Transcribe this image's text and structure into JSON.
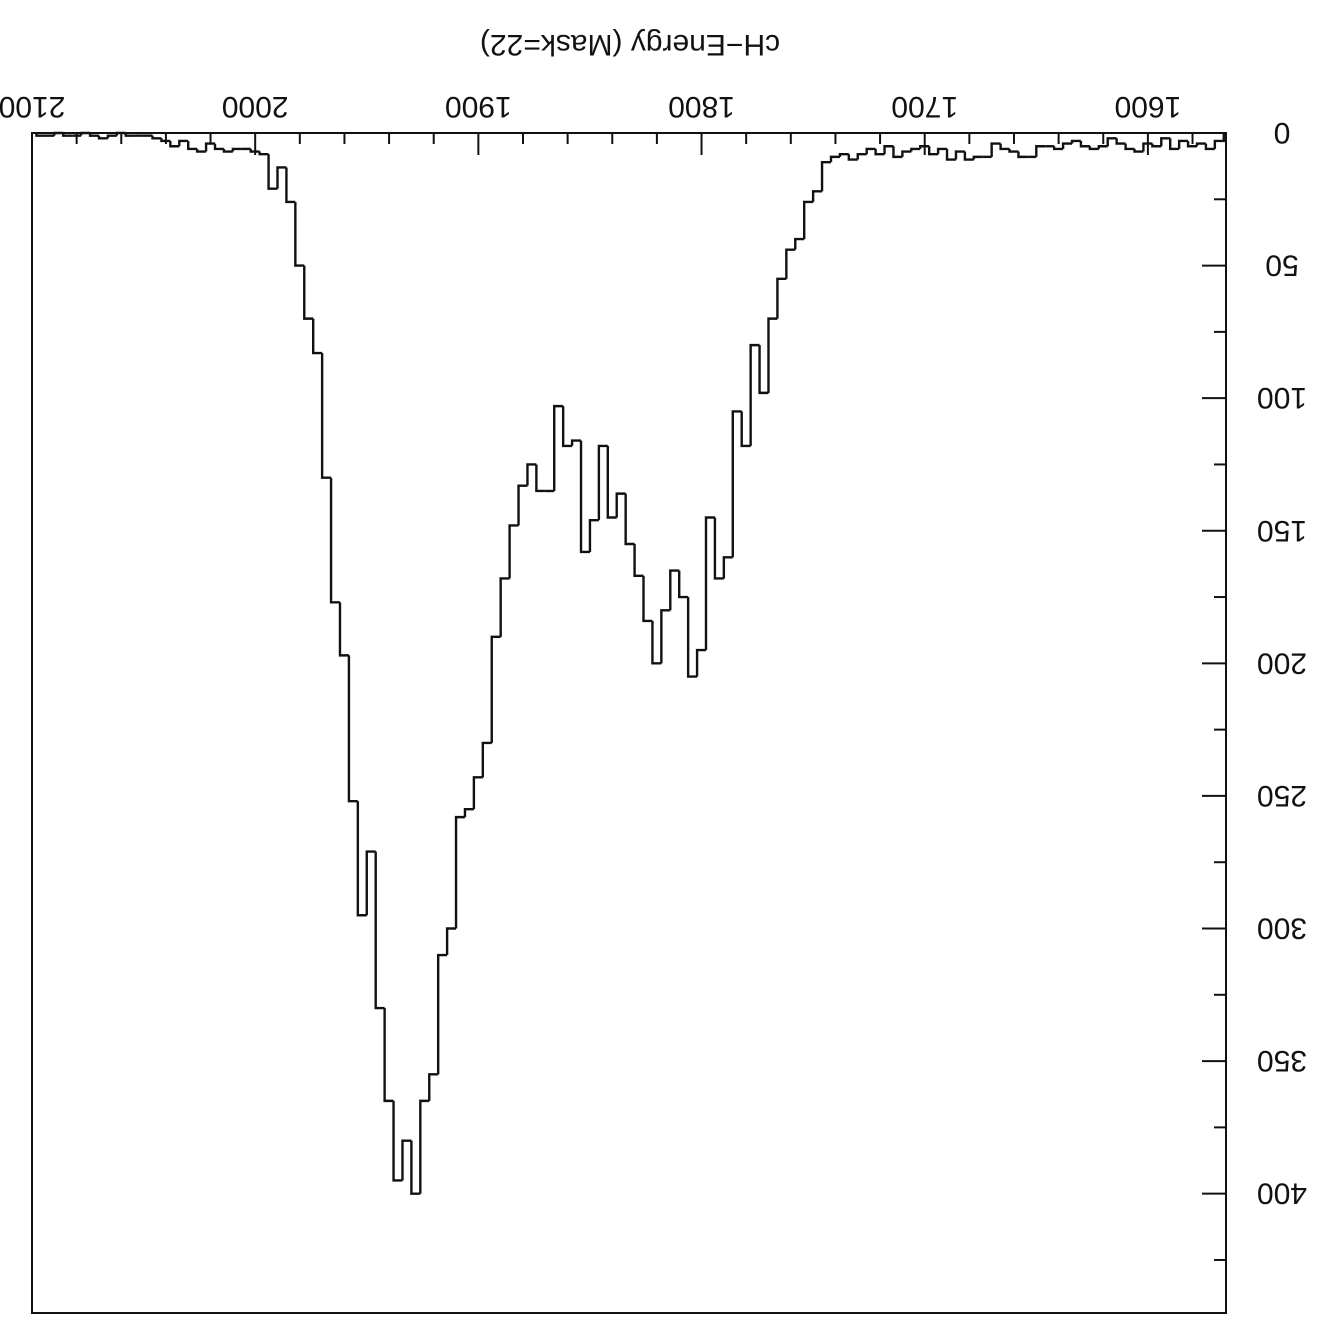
{
  "chart_data": {
    "type": "histogram",
    "orientation": "rotated 180 degrees (upside-down scan)",
    "title": "cH−Energy (Mask=22)",
    "xlabel": "",
    "ylabel": "",
    "xlim": [
      2100,
      1565
    ],
    "ylim": [
      0,
      445
    ],
    "x_ticks": [
      2100,
      2000,
      1900,
      1800,
      1700,
      1600
    ],
    "y_ticks": [
      0,
      50,
      100,
      150,
      200,
      250,
      300,
      350,
      400
    ],
    "grid": false,
    "legend": "none",
    "line_color": "#111111",
    "bins": {
      "x": [
        2096,
        2092,
        2088,
        2084,
        2080,
        2076,
        2072,
        2068,
        2064,
        2060,
        2056,
        2052,
        2048,
        2044,
        2040,
        2036,
        2032,
        2028,
        2024,
        2020,
        2016,
        2012,
        2008,
        2004,
        2000,
        1996,
        1992,
        1988,
        1984,
        1980,
        1976,
        1972,
        1968,
        1964,
        1960,
        1956,
        1952,
        1948,
        1944,
        1940,
        1936,
        1932,
        1928,
        1924,
        1920,
        1916,
        1912,
        1908,
        1904,
        1900,
        1896,
        1892,
        1888,
        1884,
        1880,
        1876,
        1872,
        1868,
        1864,
        1860,
        1856,
        1852,
        1848,
        1844,
        1840,
        1836,
        1832,
        1828,
        1824,
        1820,
        1816,
        1812,
        1808,
        1804,
        1800,
        1796,
        1792,
        1788,
        1784,
        1780,
        1776,
        1772,
        1768,
        1764,
        1760,
        1756,
        1752,
        1748,
        1744,
        1740,
        1736,
        1732,
        1728,
        1724,
        1720,
        1716,
        1712,
        1708,
        1704,
        1700,
        1696,
        1692,
        1688,
        1684,
        1680,
        1676,
        1672,
        1668,
        1664,
        1660,
        1656,
        1652,
        1648,
        1644,
        1640,
        1636,
        1632,
        1628,
        1624,
        1620,
        1616,
        1612,
        1608,
        1604,
        1600,
        1596,
        1592,
        1588,
        1584,
        1580,
        1576,
        1572,
        1568
      ],
      "y": [
        1,
        1,
        0,
        1,
        1,
        0,
        1,
        2,
        1,
        0,
        1,
        1,
        1,
        2,
        3,
        5,
        3,
        6,
        7,
        4,
        6,
        7,
        6,
        6,
        7,
        8,
        21,
        13,
        26,
        50,
        70,
        83,
        130,
        177,
        197,
        252,
        295,
        271,
        330,
        365,
        395,
        380,
        400,
        365,
        355,
        310,
        300,
        258,
        255,
        243,
        230,
        190,
        168,
        148,
        133,
        125,
        135,
        135,
        103,
        118,
        116,
        158,
        146,
        118,
        145,
        136,
        155,
        167,
        184,
        200,
        180,
        165,
        175,
        205,
        195,
        145,
        168,
        160,
        105,
        118,
        80,
        98,
        70,
        55,
        44,
        40,
        26,
        22,
        11,
        9,
        8,
        10,
        8,
        6,
        8,
        5,
        9,
        7,
        6,
        5,
        8,
        6,
        10,
        7,
        10,
        9,
        9,
        4,
        6,
        7,
        9,
        9,
        5,
        5,
        6,
        4,
        3,
        5,
        6,
        5,
        2,
        4,
        6,
        7,
        4,
        5,
        2,
        6,
        3,
        5,
        4,
        6,
        3
      ]
    }
  }
}
